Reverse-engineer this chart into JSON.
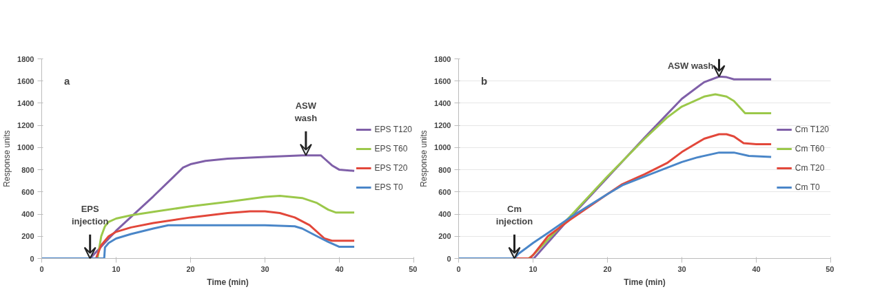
{
  "chart_data": [
    {
      "type": "line",
      "xlabel": "Time (min)",
      "ylabel": "Response units",
      "xlim": [
        0,
        50
      ],
      "ylim": [
        0,
        1800
      ],
      "xticks": [
        0,
        10,
        20,
        30,
        40,
        50
      ],
      "yticks": [
        0,
        200,
        400,
        600,
        800,
        1000,
        1200,
        1400,
        1600,
        1800
      ],
      "grid": false,
      "legend": "right",
      "marker": "none",
      "line_style": "solid",
      "annotations": [
        "a",
        {
          "text": "EPS injection",
          "x": 6.5,
          "y": 0
        },
        {
          "text": "ASW wash",
          "x": 35.5,
          "y": 930
        }
      ],
      "series": [
        {
          "name": "EPS T120",
          "color": "#7f5fa8",
          "x": [
            0,
            6.5,
            10,
            15,
            19,
            20,
            22,
            25,
            30,
            35,
            37.5,
            38,
            39,
            40,
            42
          ],
          "values": [
            0,
            0,
            250,
            560,
            820,
            850,
            880,
            900,
            915,
            930,
            930,
            900,
            840,
            800,
            790
          ]
        },
        {
          "name": "EPS T60",
          "color": "#9bc84a",
          "x": [
            0,
            7.5,
            8,
            8.5,
            9,
            10,
            12,
            15,
            20,
            25,
            30,
            32,
            35,
            37,
            38.5,
            39.5,
            42
          ],
          "values": [
            0,
            0,
            200,
            290,
            330,
            360,
            390,
            420,
            470,
            510,
            555,
            565,
            545,
            500,
            440,
            415,
            415
          ]
        },
        {
          "name": "EPS T20",
          "color": "#e2473a",
          "x": [
            0,
            7.3,
            8,
            9,
            10,
            12,
            15,
            20,
            25,
            28,
            30,
            32,
            34,
            36,
            38,
            39,
            42
          ],
          "values": [
            0,
            0,
            120,
            200,
            240,
            280,
            320,
            370,
            410,
            425,
            425,
            410,
            370,
            300,
            180,
            160,
            160
          ]
        },
        {
          "name": "EPS T0",
          "color": "#4a86c8",
          "x": [
            0,
            8.4,
            8.5,
            9,
            10,
            12,
            15,
            17,
            20,
            30,
            32,
            34,
            35,
            37,
            38.5,
            40,
            42
          ],
          "values": [
            0,
            0,
            100,
            140,
            180,
            220,
            270,
            300,
            300,
            300,
            295,
            290,
            270,
            200,
            150,
            105,
            105
          ]
        }
      ]
    },
    {
      "type": "line",
      "xlabel": "Time (min)",
      "ylabel": "Response units",
      "xlim": [
        0,
        50
      ],
      "ylim": [
        0,
        1800
      ],
      "xticks": [
        0,
        10,
        20,
        30,
        40,
        50
      ],
      "yticks": [
        0,
        200,
        400,
        600,
        800,
        1000,
        1200,
        1400,
        1600,
        1800
      ],
      "grid": "y",
      "legend": "right",
      "marker": "none",
      "line_style": "solid",
      "annotations": [
        "b",
        {
          "text": "Cm injection",
          "x": 7.5,
          "y": 0
        },
        {
          "text": "ASW wash",
          "x": 35,
          "y": 1640
        }
      ],
      "series": [
        {
          "name": "Cm T120",
          "color": "#7f5fa8",
          "x": [
            0,
            10,
            10.1,
            15,
            20,
            25,
            30,
            33,
            35,
            36,
            37,
            42
          ],
          "values": [
            0,
            0,
            0,
            370,
            730,
            1090,
            1440,
            1590,
            1640,
            1635,
            1615,
            1615
          ]
        },
        {
          "name": "Cm T60",
          "color": "#9bc84a",
          "x": [
            0,
            9.4,
            10,
            15,
            20,
            25,
            28,
            30,
            33,
            34.5,
            36,
            37,
            38.5,
            42
          ],
          "values": [
            0,
            0,
            30,
            380,
            740,
            1080,
            1270,
            1370,
            1460,
            1480,
            1460,
            1420,
            1310,
            1310
          ]
        },
        {
          "name": "Cm T20",
          "color": "#e2473a",
          "x": [
            0,
            9.5,
            10,
            12,
            15,
            20,
            22,
            25,
            28,
            30,
            33,
            35,
            36,
            37,
            38.3,
            40,
            42
          ],
          "values": [
            0,
            0,
            30,
            200,
            350,
            580,
            670,
            760,
            860,
            960,
            1080,
            1120,
            1120,
            1100,
            1040,
            1030,
            1030
          ]
        },
        {
          "name": "Cm T0",
          "color": "#4a86c8",
          "x": [
            0,
            7.5,
            8,
            10,
            12,
            15,
            20,
            22,
            25,
            30,
            32,
            35,
            37,
            39,
            42
          ],
          "values": [
            0,
            0,
            40,
            140,
            230,
            370,
            580,
            660,
            740,
            870,
            910,
            955,
            955,
            925,
            915
          ]
        }
      ]
    }
  ]
}
